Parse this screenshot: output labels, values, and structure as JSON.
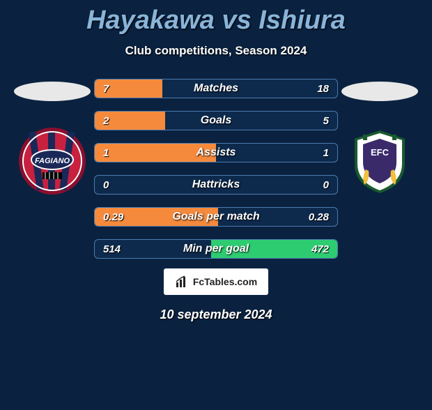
{
  "header": {
    "player1": "Hayakawa",
    "vs": "vs",
    "player2": "Ishiura",
    "subtitle": "Club competitions, Season 2024"
  },
  "colors": {
    "background": "#0a2240",
    "title": "#8ab4d8",
    "bar_border": "#4a7bb0",
    "bar_bg": "#0d2a4d",
    "fill_left": "#f58a3c",
    "fill_right": "#2ecc71",
    "ellipse": "#e8e8e8"
  },
  "stats": [
    {
      "label": "Matches",
      "left_val": "7",
      "right_val": "18",
      "left_pct": 28,
      "right_pct": 0
    },
    {
      "label": "Goals",
      "left_val": "2",
      "right_val": "5",
      "left_pct": 29,
      "right_pct": 0
    },
    {
      "label": "Assists",
      "left_val": "1",
      "right_val": "1",
      "left_pct": 50,
      "right_pct": 0
    },
    {
      "label": "Hattricks",
      "left_val": "0",
      "right_val": "0",
      "left_pct": 0,
      "right_pct": 0
    },
    {
      "label": "Goals per match",
      "left_val": "0.29",
      "right_val": "0.28",
      "left_pct": 51,
      "right_pct": 0
    },
    {
      "label": "Min per goal",
      "left_val": "514",
      "right_val": "472",
      "left_pct": 0,
      "right_pct": 52
    }
  ],
  "footer": {
    "site": "FcTables.com",
    "date": "10 september 2024"
  },
  "badges": {
    "left": {
      "border": "#8a0f2e",
      "inner": "#c8213f",
      "stripe": "#1a2858",
      "ring": "#ffffff",
      "text_bg": "#1a2858",
      "text": "FAGIANO",
      "text_color": "#ffffff"
    },
    "right": {
      "border": "#195a2e",
      "inner": "#ffffff",
      "accent": "#f0c040",
      "crest": "#3a2a6a",
      "crest_text": "EFC"
    }
  }
}
